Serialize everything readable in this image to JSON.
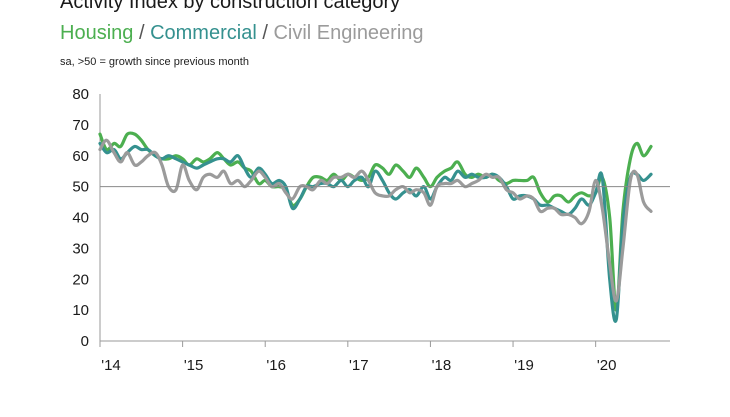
{
  "chart_data": {
    "type": "line",
    "title": "Activity Index by construction category",
    "subtitle": "sa, >50 = growth since previous month",
    "legend_separator": "/",
    "xlabel": "",
    "ylabel": "",
    "ylim": [
      0,
      80
    ],
    "yticks": [
      "0",
      "10",
      "20",
      "30",
      "40",
      "50",
      "60",
      "70",
      "80"
    ],
    "xlim": [
      2014.0,
      2020.9
    ],
    "xticks": [
      {
        "label": "'14",
        "value": 2014
      },
      {
        "label": "'15",
        "value": 2015
      },
      {
        "label": "'16",
        "value": 2016
      },
      {
        "label": "'17",
        "value": 2017
      },
      {
        "label": "'18",
        "value": 2018
      },
      {
        "label": "'19",
        "value": 2019
      },
      {
        "label": "'20",
        "value": 2020
      }
    ],
    "reference_line": 50,
    "series": [
      {
        "name": "Housing",
        "color": "#4caf50",
        "x": [
          2014.0,
          2014.08,
          2014.17,
          2014.25,
          2014.33,
          2014.42,
          2014.5,
          2014.58,
          2014.67,
          2014.75,
          2014.83,
          2014.92,
          2015.0,
          2015.08,
          2015.17,
          2015.25,
          2015.33,
          2015.42,
          2015.5,
          2015.58,
          2015.67,
          2015.75,
          2015.83,
          2015.92,
          2016.0,
          2016.08,
          2016.17,
          2016.25,
          2016.33,
          2016.42,
          2016.5,
          2016.58,
          2016.67,
          2016.75,
          2016.83,
          2016.92,
          2017.0,
          2017.08,
          2017.17,
          2017.25,
          2017.33,
          2017.42,
          2017.5,
          2017.58,
          2017.67,
          2017.75,
          2017.83,
          2017.92,
          2018.0,
          2018.08,
          2018.17,
          2018.25,
          2018.33,
          2018.42,
          2018.5,
          2018.58,
          2018.67,
          2018.75,
          2018.83,
          2018.92,
          2019.0,
          2019.08,
          2019.17,
          2019.25,
          2019.33,
          2019.42,
          2019.5,
          2019.58,
          2019.67,
          2019.75,
          2019.83,
          2019.92,
          2020.0,
          2020.08,
          2020.17,
          2020.25,
          2020.33,
          2020.42,
          2020.5,
          2020.58,
          2020.67
        ],
        "values": [
          67,
          62,
          64,
          63,
          67,
          67,
          65,
          62,
          60,
          59,
          59,
          60,
          59,
          57,
          59,
          58,
          59,
          61,
          59,
          57,
          58,
          56,
          55,
          51,
          52,
          50,
          50,
          49,
          44,
          46,
          50,
          53,
          53,
          52,
          54,
          52,
          54,
          53,
          52,
          53,
          57,
          56,
          54,
          57,
          55,
          53,
          56,
          53,
          50,
          53,
          55,
          56,
          58,
          54,
          53,
          54,
          53,
          54,
          52,
          51,
          52,
          52,
          52,
          53,
          48,
          45,
          47,
          47,
          45,
          47,
          48,
          47,
          48,
          53,
          40,
          10,
          42,
          59,
          64,
          60,
          63
        ]
      },
      {
        "name": "Commercial",
        "color": "#35918f",
        "x": [
          2014.0,
          2014.08,
          2014.17,
          2014.25,
          2014.33,
          2014.42,
          2014.5,
          2014.58,
          2014.67,
          2014.75,
          2014.83,
          2014.92,
          2015.0,
          2015.08,
          2015.17,
          2015.25,
          2015.33,
          2015.42,
          2015.5,
          2015.58,
          2015.67,
          2015.75,
          2015.83,
          2015.92,
          2016.0,
          2016.08,
          2016.17,
          2016.25,
          2016.33,
          2016.42,
          2016.5,
          2016.58,
          2016.67,
          2016.75,
          2016.83,
          2016.92,
          2017.0,
          2017.08,
          2017.17,
          2017.25,
          2017.33,
          2017.42,
          2017.5,
          2017.58,
          2017.67,
          2017.75,
          2017.83,
          2017.92,
          2018.0,
          2018.08,
          2018.17,
          2018.25,
          2018.33,
          2018.42,
          2018.5,
          2018.58,
          2018.67,
          2018.75,
          2018.83,
          2018.92,
          2019.0,
          2019.08,
          2019.17,
          2019.25,
          2019.33,
          2019.42,
          2019.5,
          2019.58,
          2019.67,
          2019.75,
          2019.83,
          2019.92,
          2020.0,
          2020.08,
          2020.17,
          2020.25,
          2020.33,
          2020.42,
          2020.5,
          2020.58,
          2020.67
        ],
        "values": [
          64,
          61,
          62,
          59,
          61,
          63,
          62,
          62,
          60,
          59,
          60,
          59,
          58,
          57,
          56,
          57,
          58,
          59,
          59,
          58,
          60,
          56,
          53,
          56,
          54,
          51,
          52,
          50,
          43,
          46,
          50,
          50,
          51,
          51,
          50,
          52,
          50,
          52,
          53,
          50,
          55,
          52,
          48,
          46,
          48,
          49,
          47,
          50,
          46,
          50,
          53,
          52,
          55,
          53,
          54,
          53,
          53,
          54,
          53,
          50,
          46,
          47,
          47,
          46,
          44,
          44,
          43,
          42,
          41,
          43,
          46,
          44,
          48,
          53,
          20,
          7,
          38,
          53,
          54,
          52,
          54
        ]
      },
      {
        "name": "Civil Engineering",
        "color": "#9b9b9b",
        "x": [
          2014.0,
          2014.08,
          2014.17,
          2014.25,
          2014.33,
          2014.42,
          2014.5,
          2014.58,
          2014.67,
          2014.75,
          2014.83,
          2014.92,
          2015.0,
          2015.08,
          2015.17,
          2015.25,
          2015.33,
          2015.42,
          2015.5,
          2015.58,
          2015.67,
          2015.75,
          2015.83,
          2015.92,
          2016.0,
          2016.08,
          2016.17,
          2016.25,
          2016.33,
          2016.42,
          2016.5,
          2016.58,
          2016.67,
          2016.75,
          2016.83,
          2016.92,
          2017.0,
          2017.08,
          2017.17,
          2017.25,
          2017.33,
          2017.42,
          2017.5,
          2017.58,
          2017.67,
          2017.75,
          2017.83,
          2017.92,
          2018.0,
          2018.08,
          2018.17,
          2018.25,
          2018.33,
          2018.42,
          2018.5,
          2018.58,
          2018.67,
          2018.75,
          2018.83,
          2018.92,
          2019.0,
          2019.08,
          2019.17,
          2019.25,
          2019.33,
          2019.42,
          2019.5,
          2019.58,
          2019.67,
          2019.75,
          2019.83,
          2019.92,
          2020.0,
          2020.08,
          2020.17,
          2020.25,
          2020.33,
          2020.42,
          2020.5,
          2020.58,
          2020.67
        ],
        "values": [
          62,
          65,
          61,
          58,
          61,
          57,
          58,
          60,
          61,
          57,
          50,
          49,
          57,
          52,
          49,
          53,
          54,
          53,
          55,
          51,
          52,
          50,
          52,
          55,
          53,
          50,
          51,
          48,
          46,
          50,
          50,
          49,
          52,
          51,
          53,
          53,
          54,
          53,
          55,
          52,
          48,
          47,
          47,
          49,
          50,
          48,
          49,
          48,
          44,
          50,
          51,
          51,
          52,
          50,
          51,
          52,
          54,
          53,
          53,
          49,
          48,
          46,
          47,
          46,
          42,
          43,
          43,
          41,
          41,
          40,
          38,
          42,
          52,
          43,
          25,
          13,
          30,
          52,
          54,
          45,
          42
        ]
      }
    ]
  }
}
